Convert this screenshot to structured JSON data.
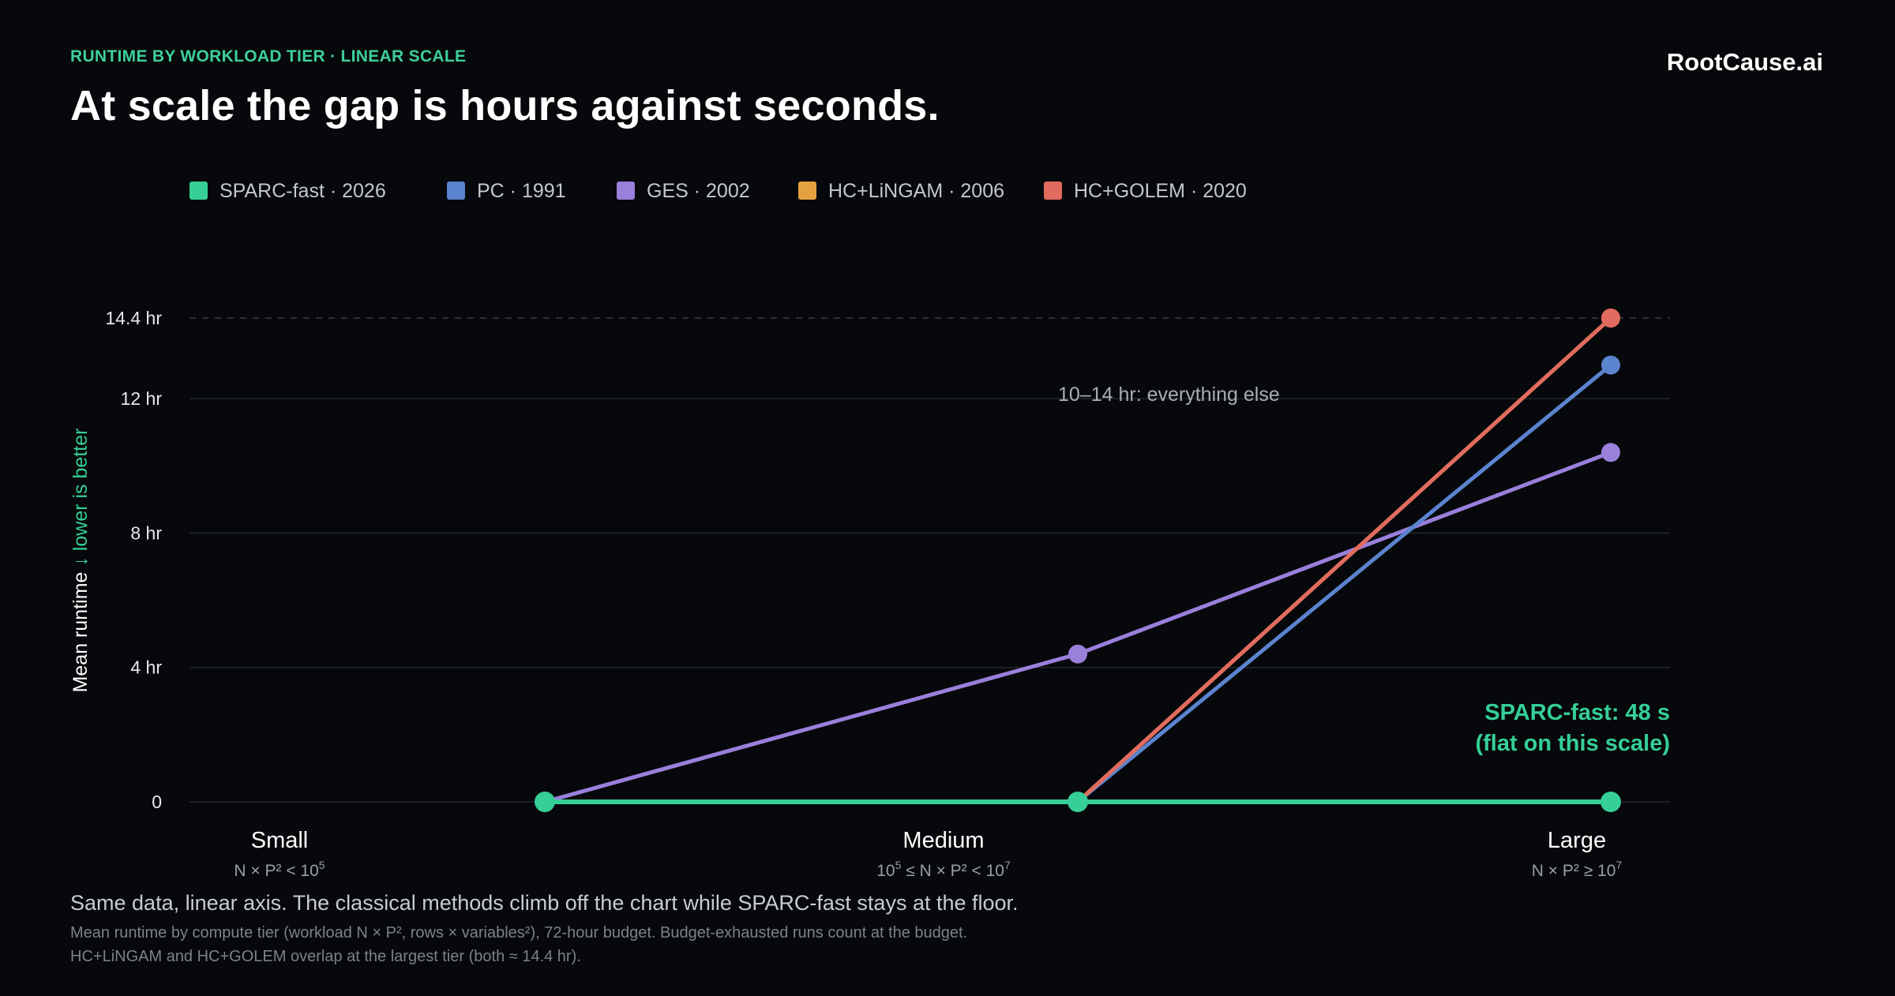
{
  "header": {
    "eyebrow": "RUNTIME BY WORKLOAD TIER · LINEAR SCALE",
    "title": "At scale the gap is hours against seconds.",
    "brand": "RootCause.ai"
  },
  "footer": {
    "caption": "Same data, linear axis. The classical methods climb off the chart while SPARC-fast stays at the floor.",
    "note_1": "Mean runtime by compute tier (workload N × P², rows × variables²), 72-hour budget. Budget-exhausted runs count at the budget.",
    "note_2": "HC+LiNGAM and HC+GOLEM overlap at the largest tier (both ≈ 14.4 hr)."
  },
  "chart_data": {
    "type": "line",
    "ylabel": "Mean runtime",
    "ylabel_hint": "↓ lower is better",
    "y_unit": "hr",
    "ylim": [
      0,
      14.4
    ],
    "yticks": [
      {
        "value": 0,
        "label": "0"
      },
      {
        "value": 4,
        "label": "4 hr"
      },
      {
        "value": 8,
        "label": "8 hr"
      },
      {
        "value": 12,
        "label": "12 hr"
      },
      {
        "value": 14.4,
        "label": "14.4 hr",
        "dashed": true
      }
    ],
    "categories": [
      {
        "label": "Small",
        "sub_prefix": "N × P² < 10",
        "sub_exp": "5",
        "sub_suffix": ""
      },
      {
        "label": "Medium",
        "sub_prefix": "10",
        "sub_exp": "5",
        "sub_suffix": " ≤ N × P² < 10",
        "sub_exp2": "7"
      },
      {
        "label": "Large",
        "sub_prefix": "N × P² ≥ 10",
        "sub_exp": "7",
        "sub_suffix": ""
      }
    ],
    "x_positions": [
      0.24,
      0.6,
      0.96
    ],
    "legend_placement": "top-left",
    "series": [
      {
        "name": "SPARC-fast · 2026",
        "color": "#35cf97",
        "points": [
          {
            "x": 0,
            "y": 0
          },
          {
            "x": 1,
            "y": 0
          },
          {
            "x": 2,
            "y": 0
          }
        ]
      },
      {
        "name": "PC · 1991",
        "color": "#5b84cf",
        "points": [
          {
            "x": 1,
            "y": 0
          },
          {
            "x": 2,
            "y": 13
          }
        ]
      },
      {
        "name": "GES · 2002",
        "color": "#9a7fdb",
        "points": [
          {
            "x": 0,
            "y": 0
          },
          {
            "x": 1,
            "y": 4.4
          },
          {
            "x": 2,
            "y": 10.4
          }
        ]
      },
      {
        "name": "HC+LiNGAM · 2006",
        "color": "#e3a23f",
        "points": [
          {
            "x": 1,
            "y": 0
          },
          {
            "x": 2,
            "y": 14.4
          }
        ]
      },
      {
        "name": "HC+GOLEM · 2020",
        "color": "#e26b5f",
        "points": [
          {
            "x": 1,
            "y": 0
          },
          {
            "x": 2,
            "y": 14.4
          }
        ]
      }
    ],
    "annotations": [
      {
        "text": "10–14 hr: everything else",
        "x": 1.45,
        "y": 12.1,
        "color": "#a9aeb5"
      },
      {
        "text": "SPARC-fast: 48 s",
        "color": "#35cf97",
        "anchor": "right"
      },
      {
        "text": "(flat on this scale)",
        "color": "#35cf97",
        "anchor": "right"
      }
    ],
    "grid": true
  }
}
